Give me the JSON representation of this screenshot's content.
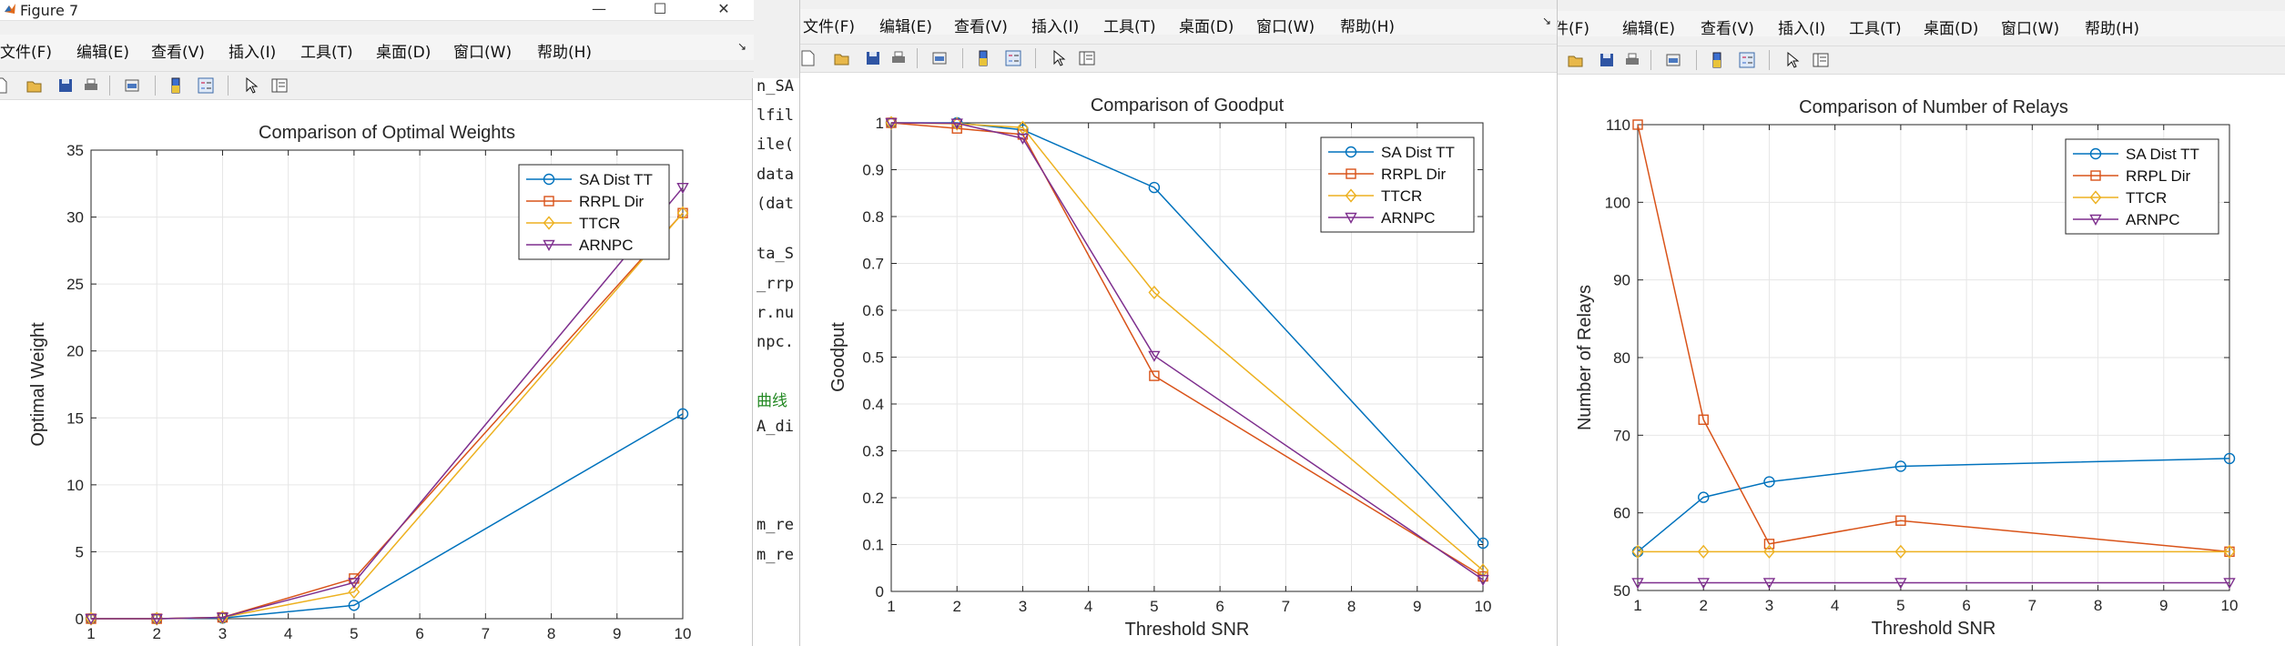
{
  "window1": {
    "title": "Figure 7",
    "controls": {
      "minimize": "—",
      "maximize": "☐",
      "close": "✕"
    }
  },
  "menu": {
    "file": "文件(F)",
    "edit": "编辑(E)",
    "view": "查看(V)",
    "insert": "插入(I)",
    "tools": "工具(T)",
    "desktop": "桌面(D)",
    "window": "窗口(W)",
    "help": "帮助(H)",
    "overflow": "↘"
  },
  "editor_fragments": [
    "n_SA",
    "lfil",
    "ile(",
    "data",
    "(dat",
    "ta_S",
    "_rrp",
    "r.nu",
    "npc.",
    "曲线",
    "A_di",
    "m_re",
    "m_re"
  ],
  "toolbar_icons": [
    "new-file-icon",
    "open-folder-icon",
    "save-icon",
    "print-icon",
    "print-preview-icon",
    "colorbar-icon",
    "legend-icon",
    "pointer-icon",
    "property-editor-icon"
  ],
  "colors": {
    "SA Dist TT": "#0072bd",
    "RRPL Dir": "#d95319",
    "TTCR": "#edb120",
    "ARNPC": "#7e2f8e"
  },
  "chart_data": [
    {
      "type": "line",
      "title": "Comparison of Optimal Weights",
      "xlabel": "",
      "ylabel": "Optimal Weight",
      "xlim": [
        1,
        10
      ],
      "ylim": [
        0,
        35
      ],
      "xticks": [
        1,
        2,
        3,
        4,
        5,
        6,
        7,
        8,
        9,
        10
      ],
      "yticks": [
        0,
        5,
        10,
        15,
        20,
        25,
        30,
        35
      ],
      "grid": true,
      "legend": "top-right",
      "x": [
        1,
        2,
        3,
        5,
        10
      ],
      "series": [
        {
          "name": "SA Dist TT",
          "marker": "circle",
          "values": [
            0,
            0,
            0.05,
            1.0,
            15.3
          ]
        },
        {
          "name": "RRPL Dir",
          "marker": "square",
          "values": [
            0,
            0,
            0.1,
            3.0,
            30.3
          ]
        },
        {
          "name": "TTCR",
          "marker": "diamond",
          "values": [
            0,
            0,
            0.1,
            2.0,
            30.3
          ]
        },
        {
          "name": "ARNPC",
          "marker": "triangle-down",
          "values": [
            0,
            0,
            0.1,
            2.7,
            32.2
          ]
        }
      ]
    },
    {
      "type": "line",
      "title": "Comparison of Goodput",
      "xlabel": "Threshold SNR",
      "ylabel": "Goodput",
      "xlim": [
        1,
        10
      ],
      "ylim": [
        0,
        1
      ],
      "xticks": [
        1,
        2,
        3,
        4,
        5,
        6,
        7,
        8,
        9,
        10
      ],
      "yticks": [
        0,
        0.1,
        0.2,
        0.3,
        0.4,
        0.5,
        0.6,
        0.7,
        0.8,
        0.9,
        1
      ],
      "grid": true,
      "legend": "top-right",
      "x": [
        1,
        2,
        3,
        5,
        10
      ],
      "series": [
        {
          "name": "SA Dist TT",
          "marker": "circle",
          "values": [
            1.0,
            1.0,
            0.985,
            0.862,
            0.103
          ]
        },
        {
          "name": "RRPL Dir",
          "marker": "square",
          "values": [
            1.0,
            0.988,
            0.975,
            0.46,
            0.032
          ]
        },
        {
          "name": "TTCR",
          "marker": "diamond",
          "values": [
            1.0,
            0.998,
            0.99,
            0.638,
            0.045
          ]
        },
        {
          "name": "ARNPC",
          "marker": "triangle-down",
          "values": [
            1.0,
            0.999,
            0.967,
            0.503,
            0.025
          ]
        }
      ]
    },
    {
      "type": "line",
      "title": "Comparison of Number of Relays",
      "xlabel": "Threshold SNR",
      "ylabel": "Number of Relays",
      "xlim": [
        1,
        10
      ],
      "ylim": [
        50,
        110
      ],
      "xticks": [
        1,
        2,
        3,
        4,
        5,
        6,
        7,
        8,
        9,
        10
      ],
      "yticks": [
        50,
        60,
        70,
        80,
        90,
        100,
        110
      ],
      "grid": true,
      "legend": "top-right",
      "x": [
        1,
        2,
        3,
        5,
        10
      ],
      "series": [
        {
          "name": "SA Dist TT",
          "marker": "circle",
          "values": [
            55,
            62,
            64,
            66,
            67
          ]
        },
        {
          "name": "RRPL Dir",
          "marker": "square",
          "values": [
            110,
            72,
            56,
            59,
            55
          ]
        },
        {
          "name": "TTCR",
          "marker": "diamond",
          "values": [
            55,
            55,
            55,
            55,
            55
          ]
        },
        {
          "name": "ARNPC",
          "marker": "triangle-down",
          "values": [
            51,
            51,
            51,
            51,
            51
          ]
        }
      ]
    }
  ]
}
